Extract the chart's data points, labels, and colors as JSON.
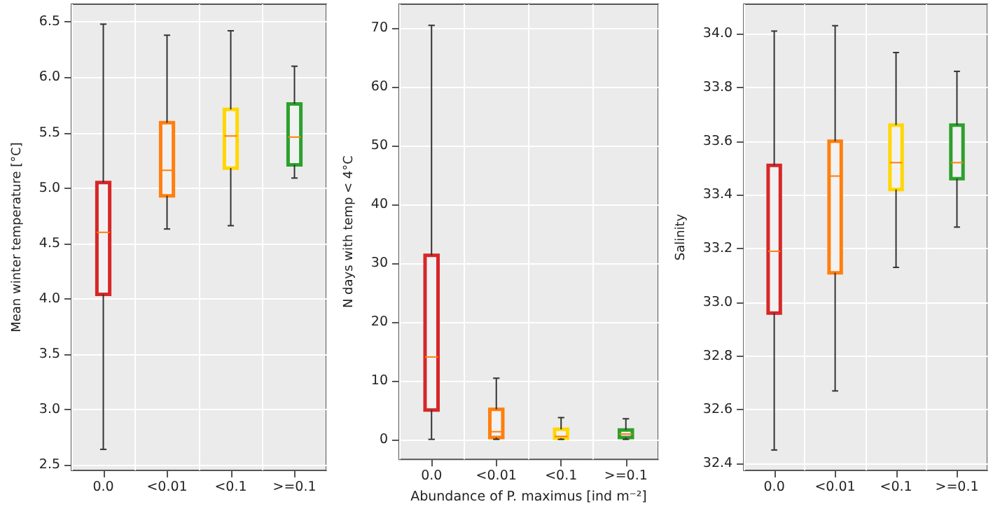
{
  "chart_data": [
    {
      "type": "box",
      "ylabel": "Mean winter temperature [°C]",
      "categories": [
        "0.0",
        "<0.01",
        "<0.1",
        ">=0.1"
      ],
      "colors": [
        "#d62728",
        "#ff7f0e",
        "#ffd700",
        "#2ca02c"
      ],
      "boxes": [
        {
          "low": 2.64,
          "q1": 4.04,
          "median": 4.6,
          "q3": 5.05,
          "high": 6.48
        },
        {
          "low": 4.63,
          "q1": 4.93,
          "median": 5.16,
          "q3": 5.59,
          "high": 6.38
        },
        {
          "low": 4.66,
          "q1": 5.18,
          "median": 5.47,
          "q3": 5.71,
          "high": 6.42
        },
        {
          "low": 5.09,
          "q1": 5.21,
          "median": 5.46,
          "q3": 5.76,
          "high": 6.1
        }
      ],
      "ylim": [
        2.45,
        6.66
      ],
      "yticks": [
        2.5,
        {
          "value": 3,
          "label": "3.0"
        },
        3.5,
        {
          "value": 4,
          "label": "4.0"
        },
        4.5,
        {
          "value": 5,
          "label": "5.0"
        },
        5.5,
        {
          "value": 6,
          "label": "6.0"
        },
        6.5
      ],
      "grid": true
    },
    {
      "type": "box",
      "ylabel": "N days with temp < 4°C",
      "xlabel": "Abundance of P. maximus [ind m⁻²]",
      "categories": [
        "0.0",
        "<0.01",
        "<0.1",
        ">=0.1"
      ],
      "colors": [
        "#d62728",
        "#ff7f0e",
        "#ffd700",
        "#2ca02c"
      ],
      "boxes": [
        {
          "low": 0,
          "q1": 5,
          "median": 14,
          "q3": 31.3,
          "high": 70.4
        },
        {
          "low": 0,
          "q1": 0.3,
          "median": 1.3,
          "q3": 5.1,
          "high": 10.4
        },
        {
          "low": 0,
          "q1": 0.2,
          "median": 0.5,
          "q3": 1.7,
          "high": 3.7
        },
        {
          "low": 0,
          "q1": 0.3,
          "median": 0.9,
          "q3": 1.6,
          "high": 3.5
        }
      ],
      "ylim": [
        -3.4,
        74
      ],
      "yticks": [
        0,
        10,
        20,
        30,
        40,
        50,
        60,
        70
      ],
      "grid": true
    },
    {
      "type": "box",
      "ylabel": "Salinity",
      "categories": [
        "0.0",
        "<0.01",
        "<0.1",
        ">=0.1"
      ],
      "colors": [
        "#d62728",
        "#ff7f0e",
        "#ffd700",
        "#2ca02c"
      ],
      "boxes": [
        {
          "low": 32.45,
          "q1": 32.96,
          "median": 33.19,
          "q3": 33.51,
          "high": 34.01
        },
        {
          "low": 32.67,
          "q1": 33.11,
          "median": 33.47,
          "q3": 33.6,
          "high": 34.03
        },
        {
          "low": 33.13,
          "q1": 33.42,
          "median": 33.52,
          "q3": 33.66,
          "high": 33.93
        },
        {
          "low": 33.28,
          "q1": 33.46,
          "median": 33.52,
          "q3": 33.66,
          "high": 33.86
        }
      ],
      "ylim": [
        32.374,
        34.11
      ],
      "yticks": [
        32.4,
        32.6,
        32.8,
        {
          "value": 33,
          "label": "33.0"
        },
        33.2,
        33.4,
        33.6,
        33.8,
        {
          "value": 34,
          "label": "34.0"
        }
      ],
      "grid": true
    }
  ]
}
